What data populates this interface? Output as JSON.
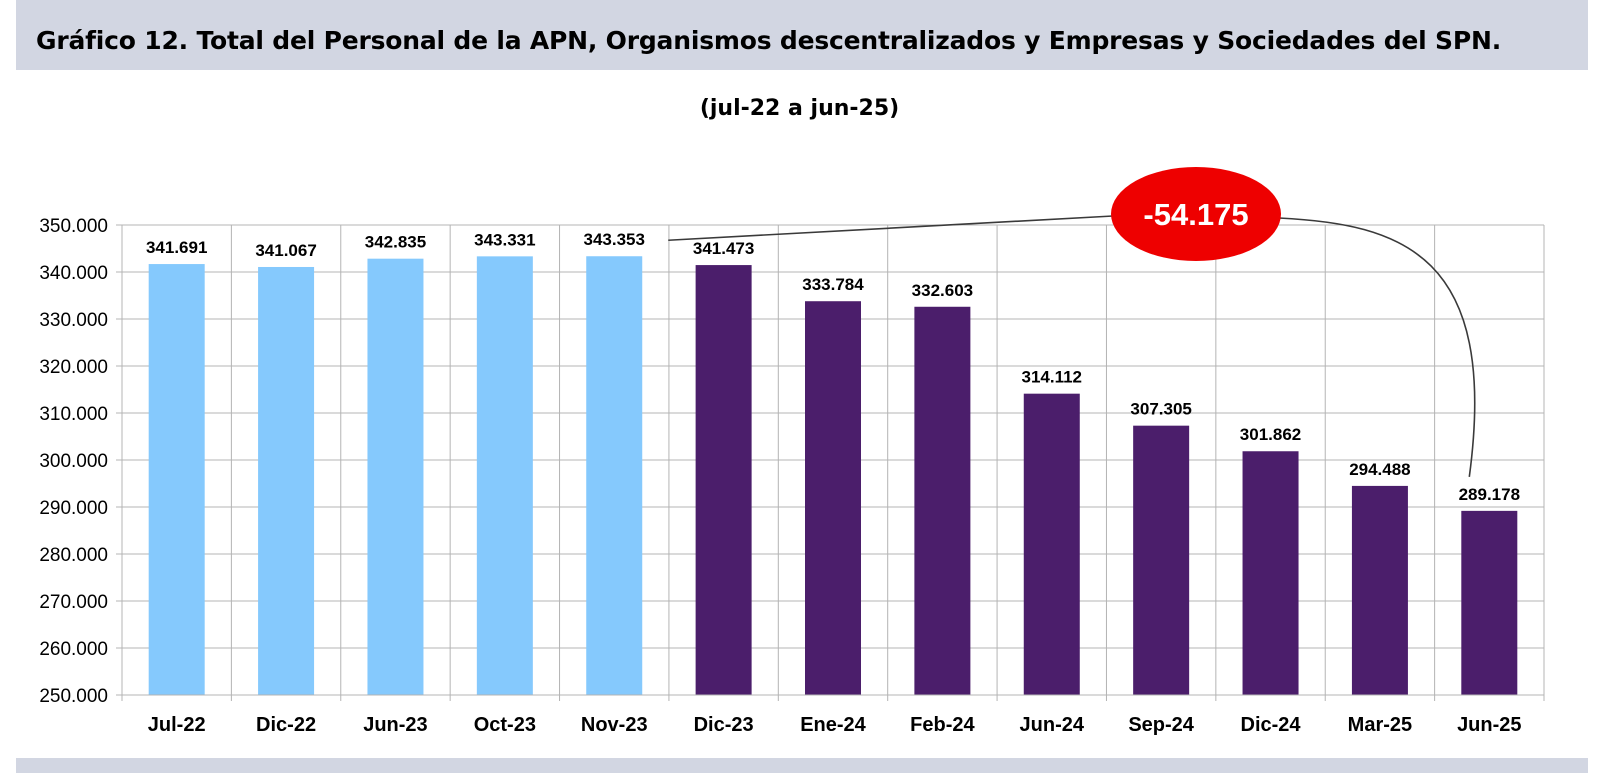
{
  "header": {
    "title": "Gráfico 12. Total del Personal de la APN, Organismos descentralizados y Empresas y Sociedades del SPN."
  },
  "chart_data": {
    "type": "bar",
    "title": "",
    "subtitle": "(jul-22 a jun-25)",
    "xlabel": "",
    "ylabel": "",
    "ylim": [
      250000,
      350000
    ],
    "y_ticks": [
      250000,
      260000,
      270000,
      280000,
      290000,
      300000,
      310000,
      320000,
      330000,
      340000,
      350000
    ],
    "y_tick_labels": [
      "250.000",
      "260.000",
      "270.000",
      "280.000",
      "290.000",
      "300.000",
      "310.000",
      "320.000",
      "330.000",
      "340.000",
      "350.000"
    ],
    "grid": true,
    "categories": [
      "Jul-22",
      "Dic-22",
      "Jun-23",
      "Oct-23",
      "Nov-23",
      "Dic-23",
      "Ene-24",
      "Feb-24",
      "Jun-24",
      "Sep-24",
      "Dic-24",
      "Mar-25",
      "Jun-25"
    ],
    "values": [
      341691,
      341067,
      342835,
      343331,
      343353,
      341473,
      333784,
      332603,
      314112,
      307305,
      301862,
      294488,
      289178
    ],
    "value_labels": [
      "341.691",
      "341.067",
      "342.835",
      "343.331",
      "343.353",
      "341.473",
      "333.784",
      "332.603",
      "314.112",
      "307.305",
      "301.862",
      "294.488",
      "289.178"
    ],
    "bar_colors": [
      "#85c9fd",
      "#85c9fd",
      "#85c9fd",
      "#85c9fd",
      "#85c9fd",
      "#4b1e6b",
      "#4b1e6b",
      "#4b1e6b",
      "#4b1e6b",
      "#4b1e6b",
      "#4b1e6b",
      "#4b1e6b",
      "#4b1e6b"
    ],
    "annotation": {
      "text": "-54.175",
      "from_category": "Nov-23",
      "to_category": "Jun-25",
      "color": "#ee0000"
    }
  }
}
